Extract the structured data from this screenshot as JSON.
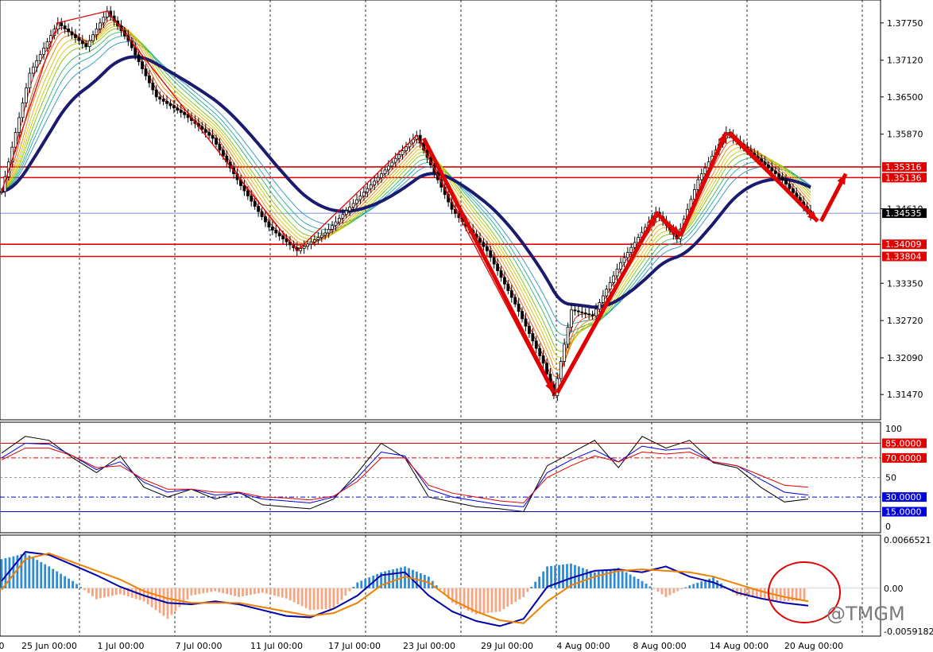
{
  "chart_data": [
    {
      "type": "candlestick",
      "title": "",
      "ylim": [
        1.3115,
        1.3803
      ],
      "price_ticks": [
        "1.37750",
        "1.37120",
        "1.36500",
        "1.35870",
        "1.34610",
        "1.33350",
        "1.32720",
        "1.32090",
        "1.31470"
      ],
      "current_price": "1.34535",
      "levels": [
        {
          "value": 1.35316,
          "label": "1.35316",
          "color": "#e00000"
        },
        {
          "value": 1.35136,
          "label": "1.35136",
          "color": "#e00000"
        },
        {
          "value": 1.34009,
          "label": "1.34009",
          "color": "#e00000"
        },
        {
          "value": 1.33804,
          "label": "1.33804",
          "color": "#e00000"
        }
      ],
      "x_labels": [
        "0",
        "25 Jun 00:00",
        "1 Jul 00:00",
        "7 Jul 00:00",
        "11 Jul 00:00",
        "17 Jul 00:00",
        "23 Jul 00:00",
        "29 Jul 00:00",
        "4 Aug 00:00",
        "8 Aug 00:00",
        "14 Aug 00:00",
        "20 Aug 00:00"
      ],
      "price_path": [
        [
          0,
          1.349
        ],
        [
          8,
          1.369
        ],
        [
          16,
          1.3775
        ],
        [
          24,
          1.3735
        ],
        [
          30,
          1.3795
        ],
        [
          36,
          1.3745
        ],
        [
          44,
          1.365
        ],
        [
          52,
          1.362
        ],
        [
          60,
          1.358
        ],
        [
          68,
          1.35
        ],
        [
          76,
          1.343
        ],
        [
          84,
          1.339
        ],
        [
          92,
          1.342
        ],
        [
          100,
          1.347
        ],
        [
          108,
          1.352
        ],
        [
          118,
          1.3585
        ],
        [
          128,
          1.346
        ],
        [
          138,
          1.339
        ],
        [
          146,
          1.33
        ],
        [
          154,
          1.32
        ],
        [
          157,
          1.3145
        ],
        [
          162,
          1.329
        ],
        [
          168,
          1.328
        ],
        [
          176,
          1.337
        ],
        [
          186,
          1.3455
        ],
        [
          192,
          1.341
        ],
        [
          198,
          1.351
        ],
        [
          206,
          1.359
        ],
        [
          212,
          1.356
        ],
        [
          222,
          1.351
        ],
        [
          230,
          1.345
        ]
      ],
      "gmma_fast_color": "#e00000",
      "gmma_slow_color": "#1a1a6e",
      "trend_color": "#e00000"
    },
    {
      "type": "line",
      "title": "",
      "ylim": [
        0,
        100
      ],
      "y_ticks": [
        "100",
        "50",
        "0"
      ],
      "levels": [
        {
          "value": 85,
          "label": "85.0000",
          "color": "#e00000"
        },
        {
          "value": 70,
          "label": "70.0000",
          "color": "#e00000"
        },
        {
          "value": 30,
          "label": "30.0000",
          "color": "#0000dd"
        },
        {
          "value": 15,
          "label": "15.0000",
          "color": "#0000dd"
        }
      ],
      "series": [
        {
          "color": "#000000",
          "values": [
            75,
            92,
            88,
            70,
            55,
            72,
            40,
            30,
            38,
            28,
            35,
            22,
            20,
            18,
            28,
            55,
            85,
            70,
            30,
            25,
            20,
            18,
            15,
            62,
            75,
            88,
            60,
            92,
            80,
            88,
            65,
            60,
            40,
            25,
            28
          ]
        },
        {
          "color": "#0000dd",
          "values": [
            70,
            85,
            84,
            72,
            58,
            66,
            45,
            35,
            38,
            32,
            34,
            28,
            26,
            24,
            30,
            50,
            76,
            72,
            38,
            30,
            26,
            22,
            20,
            55,
            68,
            78,
            66,
            82,
            78,
            80,
            66,
            62,
            48,
            35,
            32
          ]
        },
        {
          "color": "#e00000",
          "values": [
            68,
            80,
            80,
            72,
            60,
            62,
            48,
            38,
            38,
            35,
            35,
            30,
            29,
            27,
            31,
            46,
            70,
            70,
            42,
            34,
            30,
            26,
            24,
            50,
            62,
            72,
            66,
            76,
            74,
            76,
            66,
            62,
            52,
            42,
            40
          ]
        }
      ]
    },
    {
      "type": "bar",
      "title": "",
      "ylim": [
        -0.0059182,
        0.0066521
      ],
      "y_ticks": [
        "0.0066521",
        "0.00",
        "-0.0059182"
      ],
      "histogram": [
        0.004,
        0.0048,
        0.003,
        0.001,
        -0.0015,
        -0.0008,
        -0.0018,
        -0.0042,
        -0.001,
        -0.0004,
        -0.0012,
        -0.0006,
        -0.0014,
        -0.003,
        -0.0028,
        0.0008,
        0.0022,
        0.003,
        0.0016,
        -0.002,
        -0.0036,
        -0.0032,
        -0.0012,
        0.003,
        0.0034,
        0.0022,
        0.0028,
        0.001,
        -0.0012,
        0.0004,
        0.0015,
        -0.001,
        -0.0014,
        -0.0018,
        -0.0016
      ],
      "series": [
        {
          "color": "#0000aa",
          "values": [
            0.001,
            0.005,
            0.0046,
            0.0032,
            0.0018,
            0.0002,
            -0.001,
            -0.002,
            -0.0022,
            -0.0018,
            -0.0022,
            -0.003,
            -0.0038,
            -0.004,
            -0.0028,
            -0.001,
            0.0018,
            0.0022,
            -0.001,
            -0.0032,
            -0.0045,
            -0.0052,
            -0.0042,
            0.0002,
            0.0014,
            0.0024,
            0.0026,
            0.0022,
            0.003,
            0.0016,
            0.0008,
            -0.0006,
            -0.0014,
            -0.002,
            -0.0024
          ]
        },
        {
          "color": "#f08000",
          "values": [
            -0.0002,
            0.004,
            0.0048,
            0.0036,
            0.0024,
            0.0012,
            -0.0004,
            -0.0014,
            -0.002,
            -0.002,
            -0.002,
            -0.0026,
            -0.0032,
            -0.0038,
            -0.0034,
            -0.002,
            0.0004,
            0.0016,
            0.0008,
            -0.0016,
            -0.0032,
            -0.0044,
            -0.0048,
            -0.0018,
            0.0004,
            0.0016,
            0.0024,
            0.0026,
            0.0024,
            0.0022,
            0.0016,
            0.0006,
            -0.0004,
            -0.0012,
            -0.0018
          ]
        }
      ],
      "pos_color": "#2f8bd6",
      "neg_color": "#f5a582"
    }
  ],
  "watermark": "@TMGM"
}
